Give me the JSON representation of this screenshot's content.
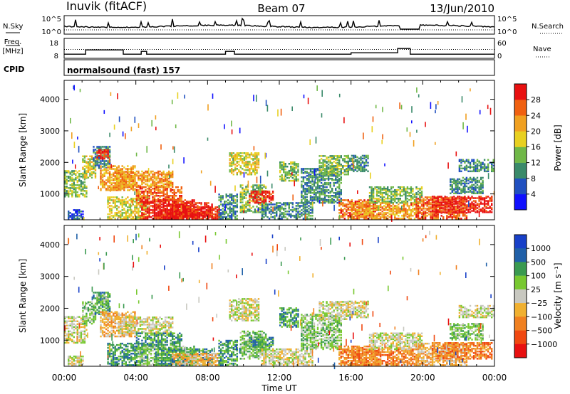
{
  "header": {
    "station": "Inuvik (fitACF)",
    "beam": "Beam 07",
    "date": "13/Jun/2010"
  },
  "labels": {
    "nsky": "N.Sky",
    "nsearch": "N.Search",
    "freq_top": "Freq.",
    "freq_unit": "[MHz]",
    "nave": "Nave",
    "cpid": "CPID",
    "cpid_value": "normalsound (fast) 157",
    "slant_range": "Slant Range [km]",
    "power_label": "Power [dB]",
    "velocity_label": "Velocity [m s⁻¹]",
    "xlabel": "Time UT"
  },
  "colors": {
    "white": "#ffffff",
    "power": [
      "#1010ff",
      "#2050c0",
      "#3a8a6a",
      "#70b848",
      "#e8d020",
      "#f0a020",
      "#f06010",
      "#e81010"
    ],
    "velocity": [
      "#e81010",
      "#f04810",
      "#f08020",
      "#f0b030",
      "#c8c8c0",
      "#78c830",
      "#3a9a50",
      "#2060a8",
      "#1840c8"
    ]
  },
  "chart_data": [
    {
      "type": "line",
      "title": "N.Sky / N.Search",
      "x_ticks": [
        "00:00",
        "04:00",
        "08:00",
        "12:00",
        "16:00",
        "20:00",
        "00:00"
      ],
      "y_ticks_left": [
        "10^5",
        "10^0"
      ],
      "y_ticks_right": [
        "10^5",
        "10^0"
      ],
      "series": [
        {
          "name": "N.Sky"
        },
        {
          "name": "N.Search"
        }
      ]
    },
    {
      "type": "line",
      "title": "Freq. / Nave",
      "y_ticks_left": [
        18,
        8
      ],
      "y_ticks_right": [
        60,
        0
      ],
      "series": [
        {
          "name": "Freq. [MHz]",
          "x": [
            0,
            1.2,
            1.2,
            3.3,
            3.3,
            4.3,
            4.3,
            4.6,
            4.6,
            9.0,
            9.0,
            9.5,
            9.5,
            16.0,
            16.0,
            18.6,
            18.6,
            19.3,
            19.3,
            24.0
          ],
          "y": [
            10.9,
            10.9,
            13.9,
            13.9,
            10.9,
            10.9,
            12.9,
            12.9,
            10.9,
            10.9,
            12.9,
            12.9,
            10.9,
            10.9,
            11.9,
            11.9,
            14.9,
            14.9,
            10.9,
            10.9
          ]
        },
        {
          "name": "Nave"
        }
      ]
    },
    {
      "type": "heatmap",
      "title": "Power",
      "xlabel": "Time UT",
      "ylabel": "Slant Range [km]",
      "x_ticks": [
        "00:00",
        "04:00",
        "08:00",
        "12:00",
        "16:00",
        "20:00",
        "00:00"
      ],
      "y_ticks": [
        1000,
        2000,
        3000,
        4000
      ],
      "xlim": [
        0,
        24
      ],
      "ylim": [
        180,
        4600
      ],
      "colorbar_label": "Power [dB]",
      "colorbar_ticks": [
        4,
        8,
        12,
        16,
        20,
        24,
        28
      ],
      "colorbar_range": [
        0,
        32
      ]
    },
    {
      "type": "heatmap",
      "title": "Velocity",
      "xlabel": "Time UT",
      "ylabel": "Slant Range [km]",
      "x_ticks": [
        "00:00",
        "04:00",
        "08:00",
        "12:00",
        "16:00",
        "20:00",
        "00:00"
      ],
      "y_ticks": [
        1000,
        2000,
        3000,
        4000
      ],
      "xlim": [
        0,
        24
      ],
      "ylim": [
        180,
        4600
      ],
      "colorbar_label": "Velocity [m s⁻¹]",
      "colorbar_ticks": [
        "1000",
        "500",
        "100",
        "25",
        "−25",
        "−100",
        "−500",
        "−1000"
      ]
    }
  ]
}
